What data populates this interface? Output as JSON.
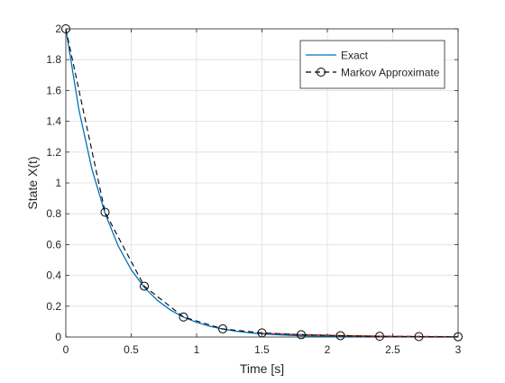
{
  "chart_data": {
    "type": "line",
    "title": "",
    "xlabel": "Time [s]",
    "ylabel": "State X(t)",
    "xlim": [
      0,
      3
    ],
    "ylim": [
      0,
      2
    ],
    "grid": true,
    "legend_position": "top-right",
    "x_ticks": [
      0,
      0.5,
      1,
      1.5,
      2,
      2.5,
      3
    ],
    "x_tick_labels": [
      "0",
      "0.5",
      "1",
      "1.5",
      "2",
      "2.5",
      "3"
    ],
    "y_ticks": [
      0,
      0.2,
      0.4,
      0.6,
      0.8,
      1,
      1.2,
      1.4,
      1.6,
      1.8,
      2
    ],
    "y_tick_labels": [
      "0",
      "0.2",
      "0.4",
      "0.6",
      "0.8",
      "1",
      "1.2",
      "1.4",
      "1.6",
      "1.8",
      "2"
    ],
    "series": [
      {
        "name": "Exact",
        "style": "solid",
        "color": "#0072bd",
        "x": [
          0,
          0.1,
          0.2,
          0.3,
          0.4,
          0.5,
          0.6,
          0.7,
          0.8,
          0.9,
          1.0,
          1.1,
          1.2,
          1.3,
          1.4,
          1.5,
          1.6,
          1.7,
          1.8,
          1.9,
          2.0,
          2.1,
          2.2,
          2.3,
          2.4,
          2.5,
          2.6,
          2.7,
          2.8,
          2.9,
          3.0
        ],
        "y": [
          2.0,
          1.475,
          1.088,
          0.803,
          0.592,
          0.437,
          0.322,
          0.238,
          0.175,
          0.129,
          0.0954,
          0.0704,
          0.0519,
          0.0383,
          0.0282,
          0.0208,
          0.0154,
          0.0113,
          0.0084,
          0.0062,
          0.0045,
          0.0034,
          0.0025,
          0.0018,
          0.0013,
          0.001,
          0.0007,
          0.0005,
          0.0004,
          0.0003,
          0.0002
        ]
      },
      {
        "name": "Markov Approximate",
        "style": "dashed",
        "marker": "circle",
        "color": "#000000",
        "x": [
          0,
          0.3,
          0.6,
          0.9,
          1.2,
          1.5,
          1.8,
          2.1,
          2.4,
          2.7,
          3.0
        ],
        "y": [
          2.0,
          0.81,
          0.33,
          0.13,
          0.053,
          0.027,
          0.015,
          0.009,
          0.005,
          0.003,
          0.002
        ]
      }
    ],
    "red_dashed_segment": {
      "color": "#d9230f",
      "x": [
        1.5,
        1.8,
        2.1,
        2.4,
        2.7,
        3.0
      ],
      "y": [
        0.024,
        0.016,
        0.01,
        0.006,
        0.004,
        0.002
      ]
    }
  }
}
